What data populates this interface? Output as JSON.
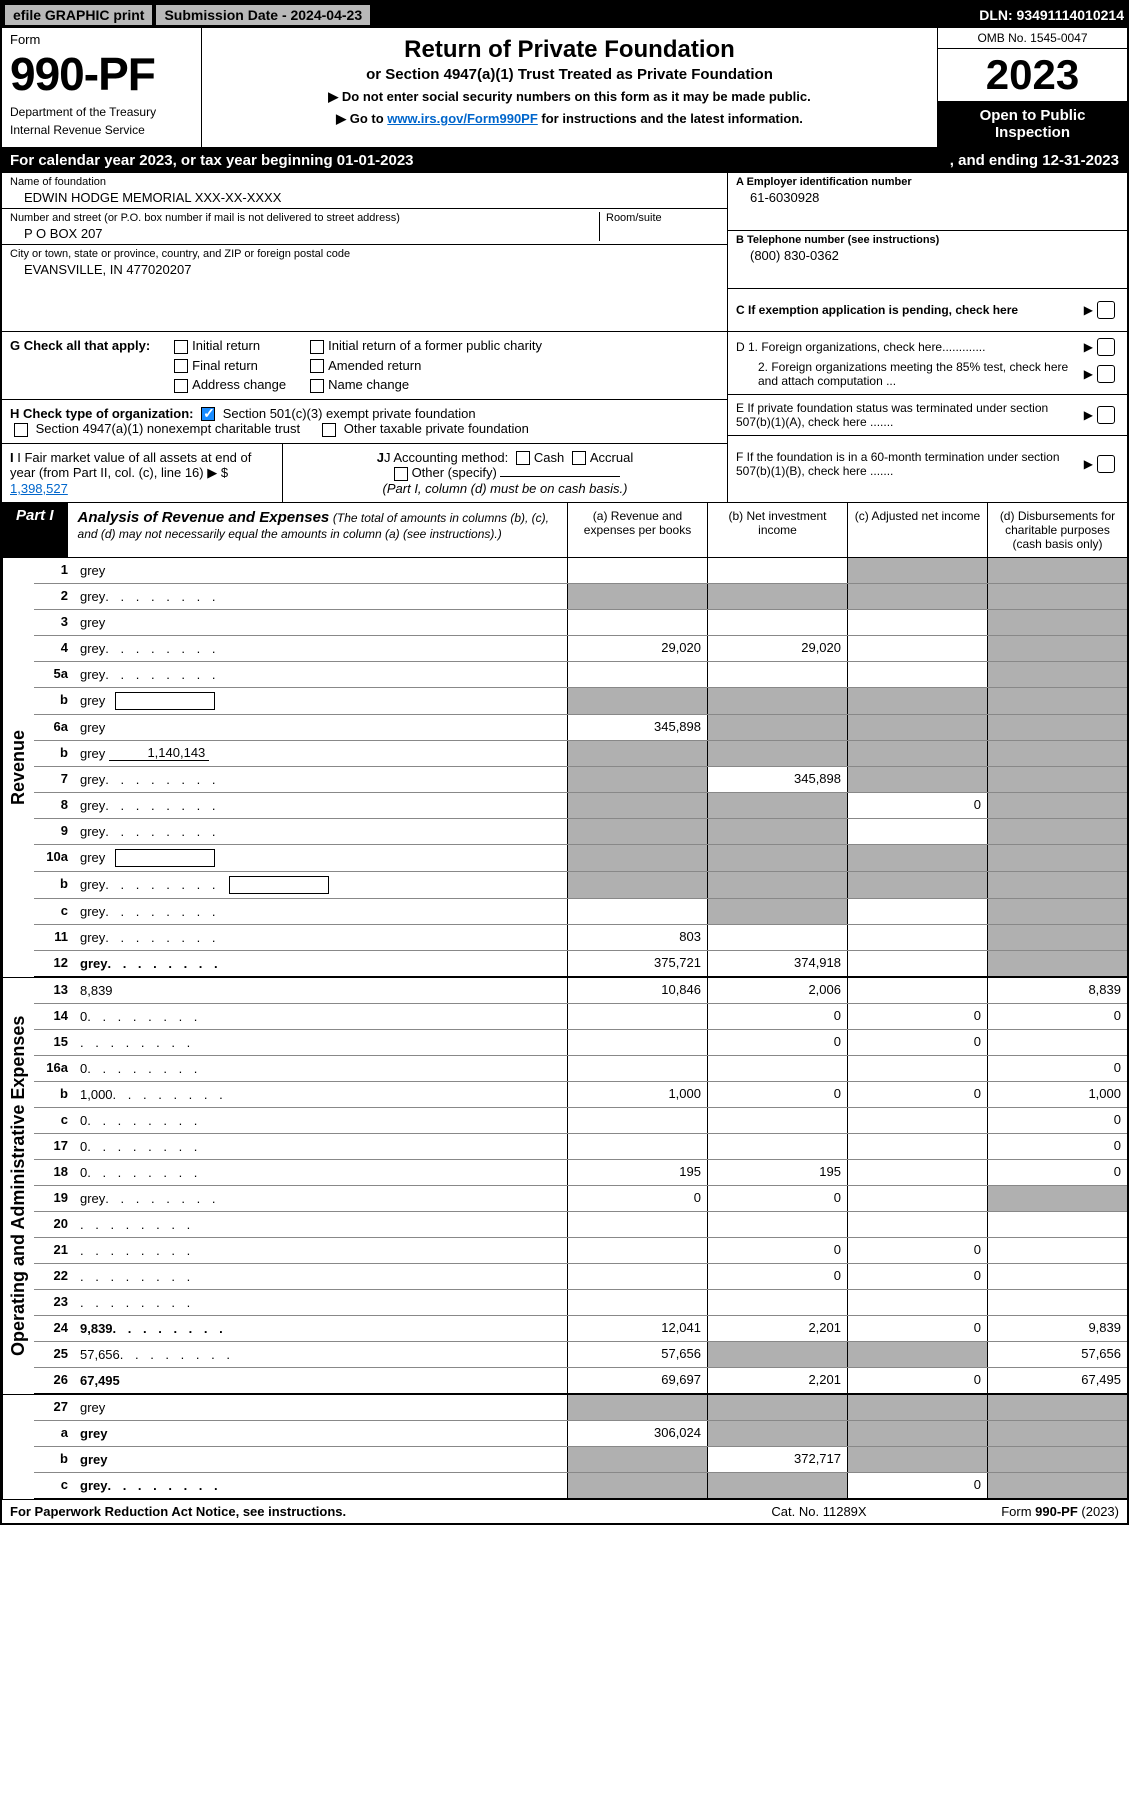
{
  "topbar": {
    "efile": "efile GRAPHIC print",
    "submission": "Submission Date - 2024-04-23",
    "dln": "DLN: 93491114010214"
  },
  "header": {
    "form_word": "Form",
    "form_number": "990-PF",
    "dept1": "Department of the Treasury",
    "dept2": "Internal Revenue Service",
    "title": "Return of Private Foundation",
    "subtitle": "or Section 4947(a)(1) Trust Treated as Private Foundation",
    "note1": "▶ Do not enter social security numbers on this form as it may be made public.",
    "note2_pre": "▶ Go to ",
    "note2_link": "www.irs.gov/Form990PF",
    "note2_post": " for instructions and the latest information.",
    "omb": "OMB No. 1545-0047",
    "year": "2023",
    "open": "Open to Public Inspection"
  },
  "calrow": {
    "left": "For calendar year 2023, or tax year beginning 01-01-2023",
    "right": ", and ending 12-31-2023"
  },
  "info": {
    "name_lbl": "Name of foundation",
    "name_val": "EDWIN HODGE MEMORIAL XXX-XX-XXXX",
    "addr_lbl": "Number and street (or P.O. box number if mail is not delivered to street address)",
    "addr_val": "P O BOX 207",
    "room_lbl": "Room/suite",
    "city_lbl": "City or town, state or province, country, and ZIP or foreign postal code",
    "city_val": "EVANSVILLE, IN  477020207",
    "ein_lbl": "A Employer identification number",
    "ein_val": "61-6030928",
    "phone_lbl": "B Telephone number (see instructions)",
    "phone_val": "(800) 830-0362",
    "c_lbl": "C If exemption application is pending, check here",
    "d1": "D 1. Foreign organizations, check here.............",
    "d2": "2. Foreign organizations meeting the 85% test, check here and attach computation ...",
    "e_lbl": "E  If private foundation status was terminated under section 507(b)(1)(A), check here .......",
    "f_lbl": "F  If the foundation is in a 60-month termination under section 507(b)(1)(B), check here ......."
  },
  "g": {
    "label": "G Check all that apply:",
    "opts": [
      "Initial return",
      "Final return",
      "Address change",
      "Initial return of a former public charity",
      "Amended return",
      "Name change"
    ]
  },
  "h": {
    "label": "H Check type of organization:",
    "opt1": "Section 501(c)(3) exempt private foundation",
    "opt2": "Section 4947(a)(1) nonexempt charitable trust",
    "opt3": "Other taxable private foundation"
  },
  "i": {
    "label": "I Fair market value of all assets at end of year (from Part II, col. (c), line 16)",
    "val": "1,398,527",
    "arrow": "▶ $"
  },
  "j": {
    "label": "J Accounting method:",
    "cash": "Cash",
    "accrual": "Accrual",
    "other": "Other (specify)",
    "note": "(Part I, column (d) must be on cash basis.)"
  },
  "part1": {
    "badge": "Part I",
    "title": "Analysis of Revenue and Expenses",
    "subtitle": "(The total of amounts in columns (b), (c), and (d) may not necessarily equal the amounts in column (a) (see instructions).)",
    "cols": {
      "a": "(a) Revenue and expenses per books",
      "b": "(b) Net investment income",
      "c": "(c) Adjusted net income",
      "d": "(d) Disbursements for charitable purposes (cash basis only)"
    }
  },
  "sidelabels": {
    "revenue": "Revenue",
    "expenses": "Operating and Administrative Expenses"
  },
  "rows": [
    {
      "n": "1",
      "d": "grey",
      "a": "",
      "b": "",
      "c": "grey"
    },
    {
      "n": "2",
      "d": "grey",
      "dots": true,
      "a": "grey",
      "b": "grey",
      "c": "grey",
      "nobold": true
    },
    {
      "n": "3",
      "d": "grey",
      "a": "",
      "b": "",
      "c": ""
    },
    {
      "n": "4",
      "d": "grey",
      "dots": true,
      "a": "29,020",
      "b": "29,020",
      "c": ""
    },
    {
      "n": "5a",
      "d": "grey",
      "dots": true,
      "a": "",
      "b": "",
      "c": ""
    },
    {
      "n": "b",
      "d": "grey",
      "box": "",
      "a": "grey",
      "b": "grey",
      "c": "grey"
    },
    {
      "n": "6a",
      "d": "grey",
      "a": "345,898",
      "b": "grey",
      "c": "grey"
    },
    {
      "n": "b",
      "d": "grey",
      "ul": "1,140,143",
      "a": "grey",
      "b": "grey",
      "c": "grey"
    },
    {
      "n": "7",
      "d": "grey",
      "dots": true,
      "a": "grey",
      "b": "345,898",
      "c": "grey"
    },
    {
      "n": "8",
      "d": "grey",
      "dots": true,
      "a": "grey",
      "b": "grey",
      "c": "0"
    },
    {
      "n": "9",
      "d": "grey",
      "dots": true,
      "a": "grey",
      "b": "grey",
      "c": ""
    },
    {
      "n": "10a",
      "d": "grey",
      "box": "",
      "a": "grey",
      "b": "grey",
      "c": "grey"
    },
    {
      "n": "b",
      "d": "grey",
      "dots": true,
      "box": "",
      "a": "grey",
      "b": "grey",
      "c": "grey"
    },
    {
      "n": "c",
      "d": "grey",
      "dots": true,
      "a": "",
      "b": "grey",
      "c": ""
    },
    {
      "n": "11",
      "d": "grey",
      "dots": true,
      "a": "803",
      "b": "",
      "c": ""
    },
    {
      "n": "12",
      "d": "grey",
      "dots": true,
      "bold": true,
      "a": "375,721",
      "b": "374,918",
      "c": "",
      "thick": true
    }
  ],
  "rows2": [
    {
      "n": "13",
      "d": "8,839",
      "a": "10,846",
      "b": "2,006",
      "c": ""
    },
    {
      "n": "14",
      "d": "0",
      "dots": true,
      "a": "",
      "b": "0",
      "c": "0"
    },
    {
      "n": "15",
      "d": "",
      "dots": true,
      "a": "",
      "b": "0",
      "c": "0"
    },
    {
      "n": "16a",
      "d": "0",
      "dots": true,
      "a": "",
      "b": "",
      "c": ""
    },
    {
      "n": "b",
      "d": "1,000",
      "dots": true,
      "a": "1,000",
      "b": "0",
      "c": "0"
    },
    {
      "n": "c",
      "d": "0",
      "dots": true,
      "a": "",
      "b": "",
      "c": ""
    },
    {
      "n": "17",
      "d": "0",
      "dots": true,
      "a": "",
      "b": "",
      "c": ""
    },
    {
      "n": "18",
      "d": "0",
      "dots": true,
      "a": "195",
      "b": "195",
      "c": ""
    },
    {
      "n": "19",
      "d": "grey",
      "dots": true,
      "a": "0",
      "b": "0",
      "c": ""
    },
    {
      "n": "20",
      "d": "",
      "dots": true,
      "a": "",
      "b": "",
      "c": ""
    },
    {
      "n": "21",
      "d": "",
      "dots": true,
      "a": "",
      "b": "0",
      "c": "0"
    },
    {
      "n": "22",
      "d": "",
      "dots": true,
      "a": "",
      "b": "0",
      "c": "0"
    },
    {
      "n": "23",
      "d": "",
      "dots": true,
      "a": "",
      "b": "",
      "c": ""
    },
    {
      "n": "24",
      "d": "9,839",
      "dots": true,
      "bold": true,
      "a": "12,041",
      "b": "2,201",
      "c": "0"
    },
    {
      "n": "25",
      "d": "57,656",
      "dots": true,
      "a": "57,656",
      "b": "grey",
      "c": "grey"
    },
    {
      "n": "26",
      "d": "67,495",
      "bold": true,
      "a": "69,697",
      "b": "2,201",
      "c": "0",
      "thick": true
    }
  ],
  "rows3": [
    {
      "n": "27",
      "d": "grey",
      "a": "grey",
      "b": "grey",
      "c": "grey"
    },
    {
      "n": "a",
      "d": "grey",
      "bold": true,
      "a": "306,024",
      "b": "grey",
      "c": "grey"
    },
    {
      "n": "b",
      "d": "grey",
      "bold": true,
      "a": "grey",
      "b": "372,717",
      "c": "grey"
    },
    {
      "n": "c",
      "d": "grey",
      "dots": true,
      "bold": true,
      "a": "grey",
      "b": "grey",
      "c": "0",
      "thick": true
    }
  ],
  "footer": {
    "f1": "For Paperwork Reduction Act Notice, see instructions.",
    "f2": "Cat. No. 11289X",
    "f3": "Form 990-PF (2023)"
  }
}
